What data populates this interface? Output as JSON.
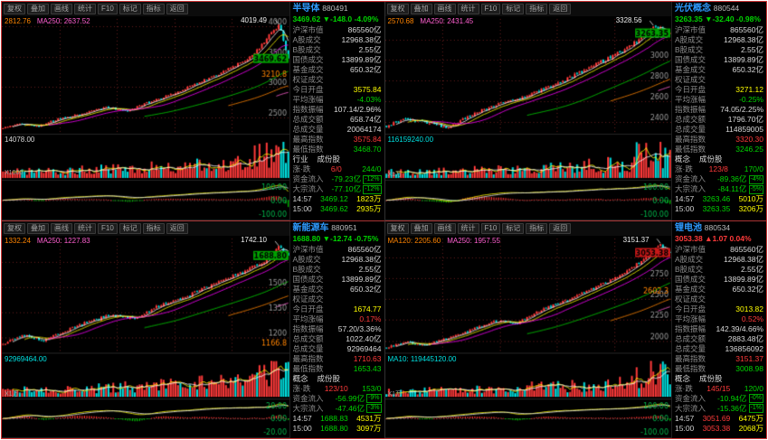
{
  "window": {
    "border_color": "#cf3535",
    "background": "#000000"
  },
  "colors": {
    "up": "#ff3a3a",
    "down": "#00d400",
    "cyan": "#00e1e1",
    "yellow": "#ffff00",
    "label": "#8c8c8c",
    "value": "#d8d8d8",
    "title_blue": "#2f9bff",
    "orange": "#ff8400",
    "magenta": "#ff5fd0"
  },
  "toolbar": {
    "items": [
      "复权",
      "叠加",
      "画线",
      "统计",
      "F10",
      "标记",
      "指标",
      "返回"
    ]
  },
  "market_rows": [
    {
      "label": "沪深市值",
      "value": "865560亿"
    },
    {
      "label": "A股成交",
      "value": "12968.38亿"
    },
    {
      "label": "B股成交",
      "value": "2.55亿"
    },
    {
      "label": "国债成交",
      "value": "13899.89亿"
    },
    {
      "label": "基金成交",
      "value": "650.32亿"
    },
    {
      "label": "权证成交",
      "value": ""
    }
  ],
  "quadrants": [
    {
      "title": "半导体",
      "code": "880491",
      "price": "3469.62",
      "change": "-148.0",
      "change_pct": "-4.09%",
      "direction": "down",
      "ma_legend": [
        {
          "text": "2812.76",
          "color": "#ff8400"
        },
        {
          "text": "MA250: 2637.52",
          "color": "#ff5fd0"
        }
      ],
      "peak_label": "4019.49",
      "volume_label": "14078.00",
      "volume_label_color": "#d8d8d8",
      "volume_unit": "X1000",
      "stats": [
        {
          "label": "今日开盘",
          "value": "3575.84",
          "color": "#ffff00"
        },
        {
          "label": "平均涨幅",
          "value": "-4.03%",
          "color": "#00d400"
        },
        {
          "label": "指数振幅",
          "value": "107.14/2.96%",
          "color": "#d8d8d8"
        },
        {
          "label": "总成交额",
          "value": "658.74亿",
          "color": "#d8d8d8"
        },
        {
          "label": "总成交量",
          "value": "20064174",
          "color": "#d8d8d8"
        },
        {
          "label": "最高指数",
          "value": "3575.84",
          "color": "#ff3a3a"
        },
        {
          "label": "最低指数",
          "value": "3468.70",
          "color": "#00d400"
        }
      ],
      "sector_links": [
        "行业",
        "成份股"
      ],
      "updown": {
        "label": "涨·跌",
        "up": "6/0",
        "down": "244/0"
      },
      "flows": [
        {
          "label": "资金流入",
          "value": "-79.23亿",
          "pct": "-12%"
        },
        {
          "label": "大宗流入",
          "value": "-77.10亿",
          "pct": "-12%"
        }
      ],
      "ticks": [
        [
          "14:57",
          "3469.12",
          "1823万"
        ],
        [
          "15:00",
          "3469.62",
          "2935万"
        ]
      ]
    },
    {
      "title": "光伏概念",
      "code": "880544",
      "price": "3263.35",
      "change": "-32.40",
      "change_pct": "-0.98%",
      "direction": "down",
      "ma_legend": [
        {
          "text": "2570.68",
          "color": "#ff8400"
        },
        {
          "text": "MA250: 2431.45",
          "color": "#ff5fd0"
        }
      ],
      "peak_label": "3328.56",
      "volume_label": "116159240.00",
      "volume_label_color": "#00e1e1",
      "volume_unit": "X1万",
      "stats": [
        {
          "label": "今日开盘",
          "value": "3271.12",
          "color": "#ffff00"
        },
        {
          "label": "平均涨幅",
          "value": "-0.25%",
          "color": "#00d400"
        },
        {
          "label": "指数振幅",
          "value": "74.05/2.25%",
          "color": "#d8d8d8"
        },
        {
          "label": "总成交额",
          "value": "1796.70亿",
          "color": "#d8d8d8"
        },
        {
          "label": "总成交量",
          "value": "114859005",
          "color": "#d8d8d8"
        },
        {
          "label": "最高指数",
          "value": "3320.30",
          "color": "#ff3a3a"
        },
        {
          "label": "最低指数",
          "value": "3246.25",
          "color": "#00d400"
        }
      ],
      "sector_links": [
        "概念",
        "成份股"
      ],
      "updown": {
        "label": "涨·跌",
        "up": "123/8",
        "down": "170/0"
      },
      "flows": [
        {
          "label": "资金流入",
          "value": "-89.36亿",
          "pct": "-4%"
        },
        {
          "label": "大宗流入",
          "value": "-84.11亿",
          "pct": "-5%"
        }
      ],
      "ticks": [
        [
          "14:57",
          "3263.46",
          "5010万"
        ],
        [
          "15:00",
          "3263.35",
          "3206万"
        ]
      ]
    },
    {
      "title": "新能源车",
      "code": "880951",
      "price": "1688.80",
      "change": "-12.74",
      "change_pct": "-0.75%",
      "direction": "down",
      "ma_legend": [
        {
          "text": "1332.24",
          "color": "#ff8400"
        },
        {
          "text": "MA250: 1227.83",
          "color": "#ff5fd0"
        }
      ],
      "peak_label": "1742.10",
      "volume_label": "92969464.00",
      "volume_label_color": "#00e1e1",
      "volume_unit": "X1万",
      "stats": [
        {
          "label": "今日开盘",
          "value": "1674.77",
          "color": "#ffff00"
        },
        {
          "label": "平均涨幅",
          "value": "0.17%",
          "color": "#ff3a3a"
        },
        {
          "label": "指数振幅",
          "value": "57.20/3.36%",
          "color": "#d8d8d8"
        },
        {
          "label": "总成交额",
          "value": "1022.40亿",
          "color": "#d8d8d8"
        },
        {
          "label": "总成交量",
          "value": "92969464",
          "color": "#d8d8d8"
        },
        {
          "label": "最高指数",
          "value": "1710.63",
          "color": "#ff3a3a"
        },
        {
          "label": "最低指数",
          "value": "1653.43",
          "color": "#00d400"
        }
      ],
      "sector_links": [
        "概念",
        "成份股"
      ],
      "updown": {
        "label": "涨·跌",
        "up": "123/10",
        "down": "153/0"
      },
      "flows": [
        {
          "label": "资金流入",
          "value": "-56.99亿",
          "pct": "-9%"
        },
        {
          "label": "大宗流入",
          "value": "-47.46亿",
          "pct": "-3%"
        }
      ],
      "ticks": [
        [
          "14:57",
          "1688.83",
          "4531万"
        ],
        [
          "15:00",
          "1688.80",
          "3097万"
        ]
      ]
    },
    {
      "title": "锂电池",
      "code": "880534",
      "price": "3053.38",
      "change": "1.07",
      "change_pct": "0.04%",
      "direction": "up",
      "ma_legend": [
        {
          "text": "MA120: 2205.60",
          "color": "#ff8400"
        },
        {
          "text": "MA250: 1957.55",
          "color": "#ff5fd0"
        }
      ],
      "peak_label": "3151.37",
      "volume_label": "MA10: 119445120.00",
      "volume_label_color": "#00e1e1",
      "volume_unit": "X1万",
      "stats": [
        {
          "label": "今日开盘",
          "value": "3013.82",
          "color": "#ffff00"
        },
        {
          "label": "平均涨幅",
          "value": "0.52%",
          "color": "#ff3a3a"
        },
        {
          "label": "指数振幅",
          "value": "142.39/4.66%",
          "color": "#d8d8d8"
        },
        {
          "label": "总成交额",
          "value": "2883.48亿",
          "color": "#d8d8d8"
        },
        {
          "label": "总成交量",
          "value": "136856092",
          "color": "#d8d8d8"
        },
        {
          "label": "最高指数",
          "value": "3151.37",
          "color": "#ff3a3a"
        },
        {
          "label": "最低指数",
          "value": "3008.98",
          "color": "#00d400"
        }
      ],
      "sector_links": [
        "概念",
        "成份股"
      ],
      "updown": {
        "label": "涨·跌",
        "up": "145/15",
        "down": "120/0"
      },
      "flows": [
        {
          "label": "资金流入",
          "value": "-10.94亿",
          "pct": "-0%"
        },
        {
          "label": "大宗流入",
          "value": "-15.36亿",
          "pct": "-1%"
        }
      ],
      "ticks": [
        [
          "14:57",
          "3051.69",
          "6475万"
        ],
        [
          "15:00",
          "3053.38",
          "2068万"
        ]
      ]
    }
  ],
  "chart_data": [
    {
      "type": "candlestick",
      "title": "半导体 880491 日K线",
      "n_candles": 120,
      "seed": 11,
      "anchors": {
        "x": [
          0,
          0.06,
          0.12,
          0.2,
          0.28,
          0.36,
          0.44,
          0.5,
          0.56,
          0.62,
          0.68,
          0.74,
          0.8,
          0.85,
          0.9,
          0.94,
          0.97,
          1
        ],
        "price": [
          2320,
          2400,
          2350,
          2480,
          2560,
          2660,
          2610,
          2730,
          2820,
          2940,
          3060,
          3180,
          3320,
          3440,
          3650,
          3900,
          4019,
          3469.62
        ]
      },
      "ylim": [
        2260,
        4120
      ],
      "y_ticks": [
        4000,
        3500,
        3000,
        2500
      ],
      "y_highlight": 3210.8,
      "peak": 4019.49,
      "last": 3469.62,
      "open": 3575.84,
      "high": 3575.84,
      "low": 3468.7,
      "macd_ticks": [
        "100.00",
        "0.00",
        "-100.00"
      ]
    },
    {
      "type": "candlestick",
      "title": "光伏概念 880544 日K线",
      "n_candles": 120,
      "seed": 23,
      "anchors": {
        "x": [
          0,
          0.07,
          0.14,
          0.22,
          0.3,
          0.38,
          0.46,
          0.54,
          0.62,
          0.7,
          0.78,
          0.85,
          0.9,
          0.95,
          1
        ],
        "price": [
          2360,
          2430,
          2390,
          2340,
          2470,
          2560,
          2620,
          2700,
          2790,
          2900,
          3010,
          3120,
          3220,
          3328.56,
          3263.35
        ]
      },
      "ylim": [
        2300,
        3400
      ],
      "y_ticks": [
        3200,
        3000,
        2800,
        2600,
        2400
      ],
      "y_highlight": null,
      "peak": 3328.56,
      "last": 3263.35,
      "open": 3271.12,
      "high": 3320.3,
      "low": 3246.25,
      "macd_ticks": [
        "100.00",
        "0.00",
        "-100.00"
      ]
    },
    {
      "type": "candlestick",
      "title": "新能源车 880951 日K线",
      "n_candles": 120,
      "seed": 37,
      "anchors": {
        "x": [
          0,
          0.07,
          0.14,
          0.22,
          0.3,
          0.38,
          0.46,
          0.54,
          0.62,
          0.7,
          0.78,
          0.85,
          0.92,
          0.97,
          1
        ],
        "price": [
          1160,
          1215,
          1185,
          1240,
          1295,
          1335,
          1315,
          1385,
          1430,
          1490,
          1545,
          1600,
          1660,
          1742.1,
          1688.8
        ]
      },
      "ylim": [
        1120,
        1790
      ],
      "y_ticks": [
        1650,
        1500,
        1350,
        1200
      ],
      "y_highlight": 1166.8,
      "peak": 1742.1,
      "last": 1688.8,
      "open": 1674.77,
      "high": 1710.63,
      "low": 1653.43,
      "macd_ticks": [
        "20.00",
        "0.00",
        "-20.00"
      ]
    },
    {
      "type": "candlestick",
      "title": "锂电池 880534 日K线",
      "n_candles": 120,
      "seed": 51,
      "anchors": {
        "x": [
          0,
          0.07,
          0.14,
          0.22,
          0.3,
          0.38,
          0.46,
          0.54,
          0.62,
          0.7,
          0.78,
          0.85,
          0.92,
          0.96,
          1
        ],
        "price": [
          1920,
          1985,
          1950,
          2040,
          2130,
          2240,
          2215,
          2360,
          2460,
          2580,
          2700,
          2840,
          3000,
          3151.37,
          3053.38
        ]
      },
      "ylim": [
        1880,
        3220
      ],
      "y_ticks": [
        3000,
        2750,
        2500,
        2250,
        2000
      ],
      "y_highlight": 2602.3,
      "peak": 3151.37,
      "last": 3053.38,
      "open": 3013.82,
      "high": 3151.37,
      "low": 3008.98,
      "macd_ticks": [
        "100.00",
        "0.00",
        "-100.00"
      ]
    }
  ]
}
